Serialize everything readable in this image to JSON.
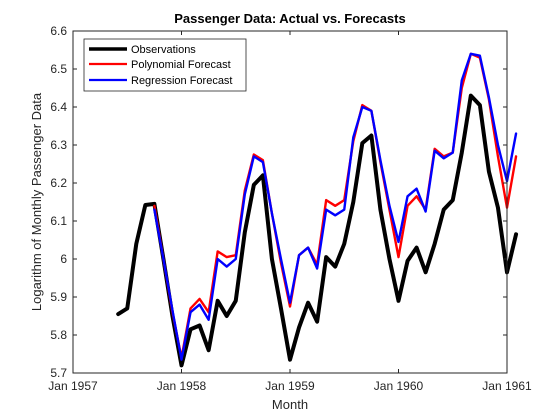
{
  "chart_data": {
    "type": "line",
    "title": "Passenger Data: Actual vs. Forecasts",
    "xlabel": "Month",
    "ylabel": "Logarithm of Monthly Passenger Data",
    "xlim": [
      "Jan 1957",
      "Jan 1961"
    ],
    "ylim": [
      5.7,
      6.6
    ],
    "xticks": [
      "Jan 1957",
      "Jan 1958",
      "Jan 1959",
      "Jan 1960",
      "Jan 1961"
    ],
    "yticks": [
      "5.7",
      "5.8",
      "5.9",
      "6",
      "6.1",
      "6.2",
      "6.3",
      "6.4",
      "6.5",
      "6.6"
    ],
    "legend_position": "top-left",
    "grid": false,
    "series": [
      {
        "name": "Observations",
        "color": "#000000",
        "start_month": "Jun 1957",
        "values": [
          5.855,
          5.87,
          6.04,
          6.142,
          6.145,
          6.0,
          5.85,
          5.72,
          5.815,
          5.825,
          5.76,
          5.89,
          5.85,
          5.89,
          6.07,
          6.195,
          6.22,
          6.0,
          5.87,
          5.735,
          5.82,
          5.885,
          5.835,
          6.005,
          5.98,
          6.04,
          6.15,
          6.305,
          6.325,
          6.13,
          6.0,
          5.89,
          5.995,
          6.03,
          5.965,
          6.04,
          6.13,
          6.155,
          6.28,
          6.43,
          6.405,
          6.23,
          6.135,
          5.965,
          6.065
        ]
      },
      {
        "name": "Polynomial Forecast",
        "color": "#ff0000",
        "start_month": "Oct 1957",
        "values": [
          6.14,
          6.0,
          5.86,
          5.74,
          5.87,
          5.895,
          5.86,
          6.02,
          6.005,
          6.01,
          6.18,
          6.275,
          6.26,
          6.12,
          5.99,
          5.875,
          6.01,
          6.03,
          5.985,
          6.155,
          6.14,
          6.155,
          6.31,
          6.405,
          6.39,
          6.255,
          6.13,
          6.005,
          6.14,
          6.165,
          6.13,
          6.29,
          6.27,
          6.28,
          6.45,
          6.54,
          6.53,
          6.42,
          6.27,
          6.135,
          6.27
        ]
      },
      {
        "name": "Regression Forecast",
        "color": "#0000ff",
        "start_month": "Oct 1957",
        "values": [
          6.13,
          6.0,
          5.865,
          5.735,
          5.86,
          5.88,
          5.84,
          6.0,
          5.98,
          6.0,
          6.17,
          6.27,
          6.255,
          6.12,
          6.0,
          5.885,
          6.01,
          6.03,
          5.975,
          6.13,
          6.115,
          6.13,
          6.32,
          6.4,
          6.39,
          6.26,
          6.14,
          6.045,
          6.165,
          6.185,
          6.125,
          6.285,
          6.265,
          6.28,
          6.47,
          6.54,
          6.535,
          6.425,
          6.3,
          6.205,
          6.33
        ]
      }
    ]
  }
}
